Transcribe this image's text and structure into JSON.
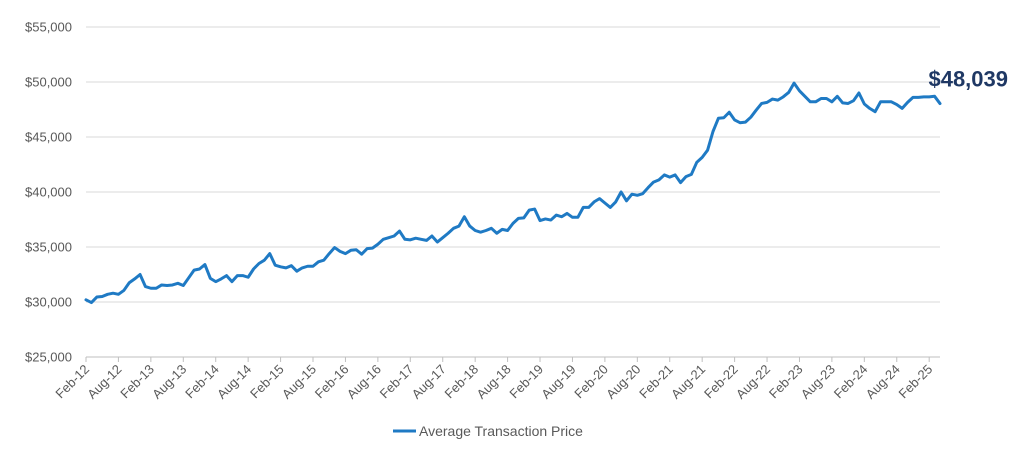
{
  "chart_data": {
    "type": "line",
    "title": "",
    "xlabel": "",
    "ylabel": "",
    "ylim": [
      25000,
      55000
    ],
    "y_ticks": [
      "$25,000",
      "$30,000",
      "$35,000",
      "$40,000",
      "$45,000",
      "$50,000",
      "$55,000"
    ],
    "y_tick_values": [
      25000,
      30000,
      35000,
      40000,
      45000,
      50000,
      55000
    ],
    "x_tick_labels": [
      "Feb-12",
      "Aug-12",
      "Feb-13",
      "Aug-13",
      "Feb-14",
      "Aug-14",
      "Feb-15",
      "Aug-15",
      "Feb-16",
      "Aug-16",
      "Feb-17",
      "Aug-17",
      "Feb-18",
      "Aug-18",
      "Feb-19",
      "Aug-19",
      "Feb-20",
      "Aug-20",
      "Feb-21",
      "Aug-21",
      "Feb-22",
      "Aug-22",
      "Feb-23",
      "Aug-23",
      "Feb-24",
      "Aug-24",
      "Feb-25"
    ],
    "grid": "horizontal",
    "legend_position": "bottom",
    "color": "#1f7ac4",
    "end_label": "$48,039",
    "series": [
      {
        "name": "Average Transaction Price",
        "x_start": "Feb-12",
        "x_end": "Feb-25",
        "frequency": "monthly",
        "values": [
          30200,
          29950,
          30450,
          30500,
          30700,
          30800,
          30700,
          31050,
          31750,
          32100,
          32500,
          31400,
          31250,
          31250,
          31550,
          31500,
          31550,
          31700,
          31500,
          32200,
          32900,
          33000,
          33400,
          32150,
          31850,
          32100,
          32400,
          31850,
          32400,
          32400,
          32250,
          33000,
          33500,
          33800,
          34400,
          33350,
          33200,
          33100,
          33300,
          32800,
          33100,
          33250,
          33250,
          33650,
          33800,
          34400,
          34950,
          34600,
          34400,
          34700,
          34750,
          34350,
          34850,
          34900,
          35250,
          35700,
          35850,
          36000,
          36450,
          35700,
          35650,
          35800,
          35700,
          35600,
          36000,
          35450,
          35850,
          36250,
          36700,
          36900,
          37750,
          36900,
          36500,
          36350,
          36500,
          36700,
          36250,
          36600,
          36500,
          37150,
          37600,
          37650,
          38350,
          38450,
          37400,
          37550,
          37450,
          37900,
          37750,
          38050,
          37700,
          37700,
          38600,
          38600,
          39100,
          39400,
          39000,
          38600,
          39100,
          40000,
          39200,
          39800,
          39700,
          39850,
          40400,
          40900,
          41100,
          41550,
          41350,
          41550,
          40850,
          41400,
          41600,
          42700,
          43150,
          43800,
          45500,
          46700,
          46750,
          47250,
          46550,
          46300,
          46350,
          46800,
          47450,
          48050,
          48150,
          48450,
          48350,
          48650,
          49050,
          49900,
          49200,
          48700,
          48200,
          48200,
          48500,
          48500,
          48200,
          48700,
          48100,
          48050,
          48300,
          49000,
          48000,
          47600,
          47300,
          48200,
          48200,
          48200,
          47950,
          47600,
          48150,
          48600,
          48600,
          48650,
          48650,
          48700,
          48039
        ]
      }
    ]
  }
}
